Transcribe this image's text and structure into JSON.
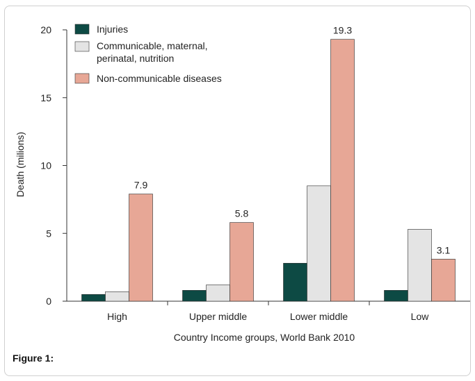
{
  "chart_data": {
    "type": "bar",
    "ylabel": "Death (milions)",
    "xlabel": "Country Income groups, World Bank  2010",
    "ylim": [
      0,
      20
    ],
    "yticks": [
      0,
      5,
      10,
      15,
      20
    ],
    "categories": [
      "High",
      "Upper middle",
      "Lower middle",
      "Low"
    ],
    "series": [
      {
        "name": "Injuries",
        "color": "#0d4a44",
        "values": [
          0.5,
          0.8,
          2.8,
          0.8
        ]
      },
      {
        "name": "Communicable, maternal, perinatal, nutrition",
        "color": "#e4e4e4",
        "values": [
          0.7,
          1.2,
          8.5,
          5.3
        ]
      },
      {
        "name": "Non-communicable diseases",
        "color": "#e7a796",
        "values": [
          7.9,
          5.8,
          19.3,
          3.1
        ]
      }
    ],
    "data_labels": {
      "series_index": 2,
      "labels": [
        "7.9",
        "5.8",
        "19.3",
        "3.1"
      ]
    },
    "legend_position": "top-left"
  },
  "legend_labels": {
    "injuries": "Injuries",
    "communicable_line1": "Communicable, maternal,",
    "communicable_line2": "perinatal, nutrition",
    "noncommunicable": "Non-communicable diseases"
  },
  "caption": "Figure 1:"
}
